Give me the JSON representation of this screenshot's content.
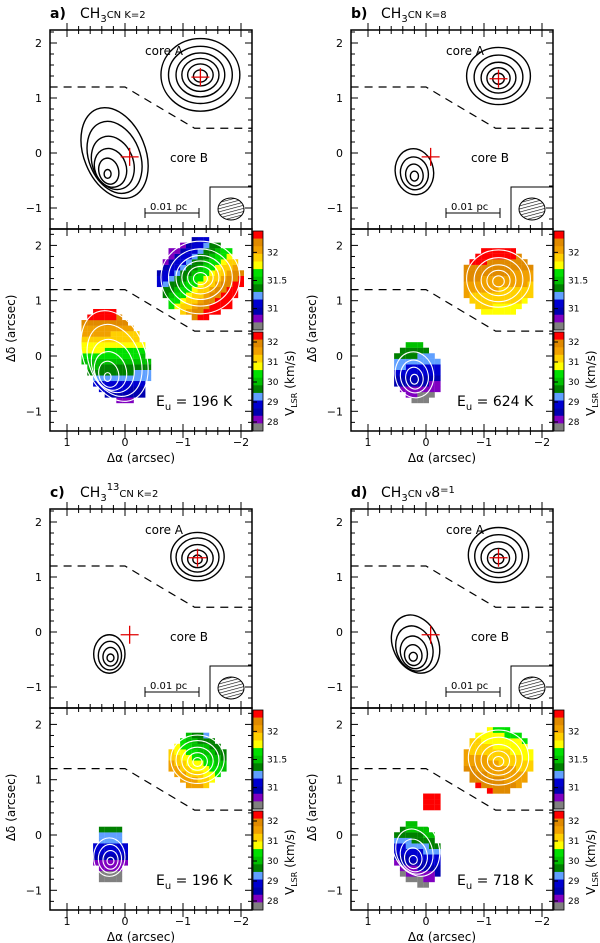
{
  "chart_data": [
    {
      "type": "heatmap",
      "label": "a)",
      "title": "CH3CN K=2",
      "title_parts": [
        "CH",
        "3",
        "",
        "CN K=2"
      ],
      "eu_text": "E",
      "eu_sub": "u",
      "eu_value": "= 196 K",
      "xlabel": "Δα (arcsec)",
      "ylabel": "Δδ (arcsec)",
      "cbar_label": "V",
      "cbar_sub": "LSR",
      "cbar_unit": "(km/s)",
      "xlim": [
        1.3,
        -2.2
      ],
      "ylim": [
        -1.38,
        2.25
      ],
      "xticks": [
        "1",
        "0",
        "−1",
        "−2"
      ],
      "yticks": [
        "2",
        "1",
        "0",
        "−1"
      ],
      "cbar_upper_ticks": [
        "32",
        "31.5",
        "31"
      ],
      "cbar_upper_range": [
        30.62,
        32.38
      ],
      "cbar_lower_ticks": [
        "32",
        "31",
        "30",
        "29",
        "28"
      ],
      "cbar_lower_range": [
        27.55,
        32.5
      ],
      "core_a_label": "core A",
      "core_b_label": "core B",
      "scalebar": "0.01 pc",
      "crosses": [
        [
          -1.3,
          1.38
        ],
        [
          -0.08,
          -0.07
        ]
      ],
      "contours": [
        [
          -1.3,
          1.4,
          0.12,
          0.11,
          0
        ],
        [
          -1.3,
          1.42,
          0.22,
          0.2,
          0
        ],
        [
          -1.3,
          1.42,
          0.32,
          0.3,
          0
        ],
        [
          -1.3,
          1.42,
          0.42,
          0.4,
          0
        ],
        [
          -1.3,
          1.42,
          0.55,
          0.52,
          0
        ],
        [
          -1.3,
          1.42,
          0.68,
          0.66,
          0
        ],
        [
          0.3,
          -0.38,
          0.06,
          0.08,
          0
        ],
        [
          0.28,
          -0.33,
          0.17,
          0.24,
          -15
        ],
        [
          0.25,
          -0.27,
          0.27,
          0.36,
          -20
        ],
        [
          0.21,
          -0.18,
          0.35,
          0.5,
          -22
        ],
        [
          0.18,
          -0.08,
          0.44,
          0.68,
          -22
        ],
        [
          0.18,
          0.0,
          0.53,
          0.86,
          -22
        ]
      ],
      "vmap_a": {
        "center": [
          -1.3,
          1.4
        ],
        "r": 0.72,
        "v0": 31.7,
        "gx": -0.9,
        "gy": -0.9
      },
      "vmap_b": {
        "center": [
          0.18,
          0.0
        ],
        "rx": 0.55,
        "ry": 0.88,
        "rot": -22,
        "v0": 30.3,
        "gx": 0.2,
        "gy": 2.6
      }
    },
    {
      "type": "heatmap",
      "label": "b)",
      "title": "CH3CN K=8",
      "title_parts": [
        "CH",
        "3",
        "",
        "CN K=8"
      ],
      "eu_text": "E",
      "eu_sub": "u",
      "eu_value": "= 624 K",
      "xlabel": "Δα (arcsec)",
      "ylabel": "Δδ (arcsec)",
      "cbar_label": "V",
      "cbar_sub": "LSR",
      "cbar_unit": "(km/s)",
      "xlim": [
        1.3,
        -2.2
      ],
      "ylim": [
        -1.38,
        2.25
      ],
      "xticks": [
        "1",
        "0",
        "−1",
        "−2"
      ],
      "yticks": [
        "2",
        "1",
        "0",
        "−1"
      ],
      "cbar_upper_ticks": [
        "32",
        "31.5",
        "31"
      ],
      "cbar_upper_range": [
        30.62,
        32.38
      ],
      "cbar_lower_ticks": [
        "32",
        "31",
        "30",
        "29",
        "28"
      ],
      "cbar_lower_range": [
        27.55,
        32.5
      ],
      "core_a_label": "core A",
      "core_b_label": "core B",
      "scalebar": "0.01 pc",
      "crosses": [
        [
          -1.25,
          1.35
        ],
        [
          -0.08,
          -0.07
        ]
      ],
      "contours": [
        [
          -1.25,
          1.35,
          0.1,
          0.1,
          0
        ],
        [
          -1.25,
          1.36,
          0.2,
          0.19,
          0
        ],
        [
          -1.25,
          1.37,
          0.3,
          0.28,
          0
        ],
        [
          -1.25,
          1.38,
          0.42,
          0.4,
          0
        ],
        [
          -1.25,
          1.4,
          0.55,
          0.52,
          0
        ],
        [
          0.2,
          -0.42,
          0.07,
          0.09,
          0
        ],
        [
          0.2,
          -0.4,
          0.15,
          0.2,
          -10
        ],
        [
          0.2,
          -0.37,
          0.24,
          0.3,
          -10
        ],
        [
          0.2,
          -0.34,
          0.33,
          0.42,
          -10
        ]
      ],
      "vmap_a": {
        "center": [
          -1.25,
          1.35
        ],
        "r": 0.62,
        "v0": 32.05,
        "gx": 0.1,
        "gy": 0.5
      },
      "vmap_b": {
        "center": [
          0.15,
          -0.3
        ],
        "rx": 0.4,
        "ry": 0.55,
        "rot": -10,
        "v0": 28.8,
        "gx": 0.3,
        "gy": 2.2
      }
    },
    {
      "type": "heatmap",
      "label": "c)",
      "title": "CH3 13CN K=2",
      "title_parts": [
        "CH",
        "3",
        "13",
        "CN K=2"
      ],
      "eu_text": "E",
      "eu_sub": "u",
      "eu_value": "= 196 K",
      "xlabel": "Δα (arcsec)",
      "ylabel": "Δδ (arcsec)",
      "cbar_label": "V",
      "cbar_sub": "LSR",
      "cbar_unit": "(km/s)",
      "xlim": [
        1.3,
        -2.2
      ],
      "ylim": [
        -1.38,
        2.25
      ],
      "xticks": [
        "1",
        "0",
        "−1",
        "−2"
      ],
      "yticks": [
        "2",
        "1",
        "0",
        "−1"
      ],
      "cbar_upper_ticks": [
        "32",
        "31.5",
        "31"
      ],
      "cbar_upper_range": [
        30.62,
        32.38
      ],
      "cbar_lower_ticks": [
        "32",
        "31",
        "30",
        "29",
        "28"
      ],
      "cbar_lower_range": [
        27.55,
        32.5
      ],
      "core_a_label": "core A",
      "core_b_label": "core B",
      "scalebar": "0.01 pc",
      "crosses": [
        [
          -1.25,
          1.35
        ],
        [
          -0.08,
          -0.05
        ]
      ],
      "contours": [
        [
          -1.25,
          1.32,
          0.08,
          0.08,
          0
        ],
        [
          -1.25,
          1.33,
          0.17,
          0.16,
          0
        ],
        [
          -1.25,
          1.34,
          0.27,
          0.25,
          0
        ],
        [
          -1.25,
          1.36,
          0.37,
          0.35,
          0
        ],
        [
          -1.25,
          1.37,
          0.46,
          0.44,
          0
        ],
        [
          0.25,
          -0.47,
          0.06,
          0.07,
          0
        ],
        [
          0.25,
          -0.45,
          0.13,
          0.17,
          0
        ],
        [
          0.26,
          -0.43,
          0.2,
          0.26,
          0
        ],
        [
          0.27,
          -0.4,
          0.27,
          0.35,
          0
        ]
      ],
      "vmap_a": {
        "center": [
          -1.25,
          1.35
        ],
        "r": 0.48,
        "v0": 31.7,
        "gx": 0.6,
        "gy": -0.7
      },
      "vmap_b": {
        "center": [
          0.25,
          -0.35
        ],
        "rx": 0.27,
        "ry": 0.55,
        "rot": 0,
        "v0": 28.6,
        "gx": 0.0,
        "gy": 2.4
      }
    },
    {
      "type": "heatmap",
      "label": "d)",
      "title": "CH3CN v8=1",
      "title_parts": [
        "CH",
        "3",
        "",
        "CN v",
        "8",
        "=1"
      ],
      "eu_text": "E",
      "eu_sub": "u",
      "eu_value": "= 718 K",
      "xlabel": "Δα (arcsec)",
      "ylabel": "Δδ (arcsec)",
      "cbar_label": "V",
      "cbar_sub": "LSR",
      "cbar_unit": "(km/s)",
      "xlim": [
        1.3,
        -2.2
      ],
      "ylim": [
        -1.38,
        2.25
      ],
      "xticks": [
        "1",
        "0",
        "−1",
        "−2"
      ],
      "yticks": [
        "2",
        "1",
        "0",
        "−1"
      ],
      "cbar_upper_ticks": [
        "32",
        "31.5",
        "31"
      ],
      "cbar_upper_range": [
        30.62,
        32.38
      ],
      "cbar_lower_ticks": [
        "32",
        "31",
        "30",
        "29",
        "28"
      ],
      "cbar_lower_range": [
        27.55,
        32.5
      ],
      "core_a_label": "core A",
      "core_b_label": "core B",
      "scalebar": "0.01 pc",
      "crosses": [
        [
          -1.25,
          1.35
        ],
        [
          -0.08,
          -0.05
        ]
      ],
      "contours": [
        [
          -1.25,
          1.33,
          0.09,
          0.09,
          0
        ],
        [
          -1.25,
          1.34,
          0.19,
          0.18,
          0
        ],
        [
          -1.25,
          1.36,
          0.3,
          0.28,
          0
        ],
        [
          -1.25,
          1.38,
          0.41,
          0.39,
          0
        ],
        [
          -1.25,
          1.4,
          0.52,
          0.5,
          0
        ],
        [
          0.22,
          -0.45,
          0.07,
          0.08,
          0
        ],
        [
          0.22,
          -0.42,
          0.15,
          0.19,
          -10
        ],
        [
          0.21,
          -0.37,
          0.23,
          0.3,
          -15
        ],
        [
          0.2,
          -0.3,
          0.31,
          0.42,
          -20
        ],
        [
          0.18,
          -0.22,
          0.39,
          0.55,
          -25
        ]
      ],
      "vmap_a": {
        "center": [
          -1.25,
          1.35
        ],
        "r": 0.6,
        "v0": 31.95,
        "gx": 0.2,
        "gy": -0.5
      },
      "vmap_b": {
        "center": [
          0.15,
          -0.35
        ],
        "rx": 0.4,
        "ry": 0.6,
        "rot": -20,
        "v0": 28.9,
        "gx": -0.8,
        "gy": 2.4
      },
      "blob": {
        "center": [
          -0.1,
          0.62
        ],
        "r": 0.16,
        "v": 32.3
      }
    }
  ],
  "colors": {
    "cmap": [
      "#ff0000",
      "#e08a00",
      "#f0a000",
      "#ffd000",
      "#ffff00",
      "#00e000",
      "#00c000",
      "#008000",
      "#60a0ff",
      "#0000d0",
      "#0000b0",
      "#8000c0",
      "#808080"
    ],
    "cross": "#e00000"
  },
  "dashed_boundary": [
    [
      1.3,
      1.2
    ],
    [
      0.0,
      1.2
    ],
    [
      -1.2,
      0.45
    ],
    [
      -2.2,
      0.45
    ]
  ]
}
